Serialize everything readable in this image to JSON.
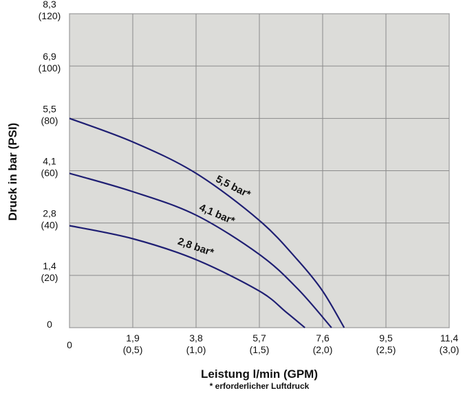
{
  "chart_data": {
    "type": "line",
    "xlabel": "Leistung l/min (GPM)",
    "ylabel": "Druck in bar (PSI)",
    "footnote": "* erforderlicher Luftdruck",
    "xlim": [
      0,
      3.0
    ],
    "ylim": [
      0,
      120
    ],
    "grid": true,
    "plot_background": "#dcdcd9",
    "curve_color": "#1f1f73",
    "x_ticks": [
      {
        "value": 0,
        "line1": "0",
        "line2": ""
      },
      {
        "value": 0.5,
        "line1": "1,9",
        "line2": "(0,5)"
      },
      {
        "value": 1.0,
        "line1": "3,8",
        "line2": "(1,0)"
      },
      {
        "value": 1.5,
        "line1": "5,7",
        "line2": "(1,5)"
      },
      {
        "value": 2.0,
        "line1": "7,6",
        "line2": "(2,0)"
      },
      {
        "value": 2.5,
        "line1": "9,5",
        "line2": "(2,5)"
      },
      {
        "value": 3.0,
        "line1": "11,4",
        "line2": "(3,0)"
      }
    ],
    "y_ticks": [
      {
        "value": 0,
        "line1": "0",
        "line2": ""
      },
      {
        "value": 20,
        "line1": "1,4",
        "line2": "(20)"
      },
      {
        "value": 40,
        "line1": "2,8",
        "line2": "(40)"
      },
      {
        "value": 60,
        "line1": "4,1",
        "line2": "(60)"
      },
      {
        "value": 80,
        "line1": "5,5",
        "line2": "(80)"
      },
      {
        "value": 100,
        "line1": "6,9",
        "line2": "(100)"
      },
      {
        "value": 120,
        "line1": "8,3",
        "line2": "(120)"
      }
    ],
    "series": [
      {
        "name": "5,5 bar*",
        "x": [
          0,
          0.5,
          1.0,
          1.5,
          1.8,
          2.0,
          2.17
        ],
        "y": [
          80,
          71,
          59,
          41,
          26,
          14,
          0
        ]
      },
      {
        "name": "4,1 bar*",
        "x": [
          0,
          0.5,
          1.0,
          1.5,
          1.8,
          2.07
        ],
        "y": [
          59,
          52,
          43,
          28,
          15,
          0
        ]
      },
      {
        "name": "2,8 bar*",
        "x": [
          0,
          0.5,
          1.0,
          1.5,
          1.71,
          1.86
        ],
        "y": [
          39,
          34,
          26,
          14,
          6,
          0
        ]
      }
    ]
  }
}
